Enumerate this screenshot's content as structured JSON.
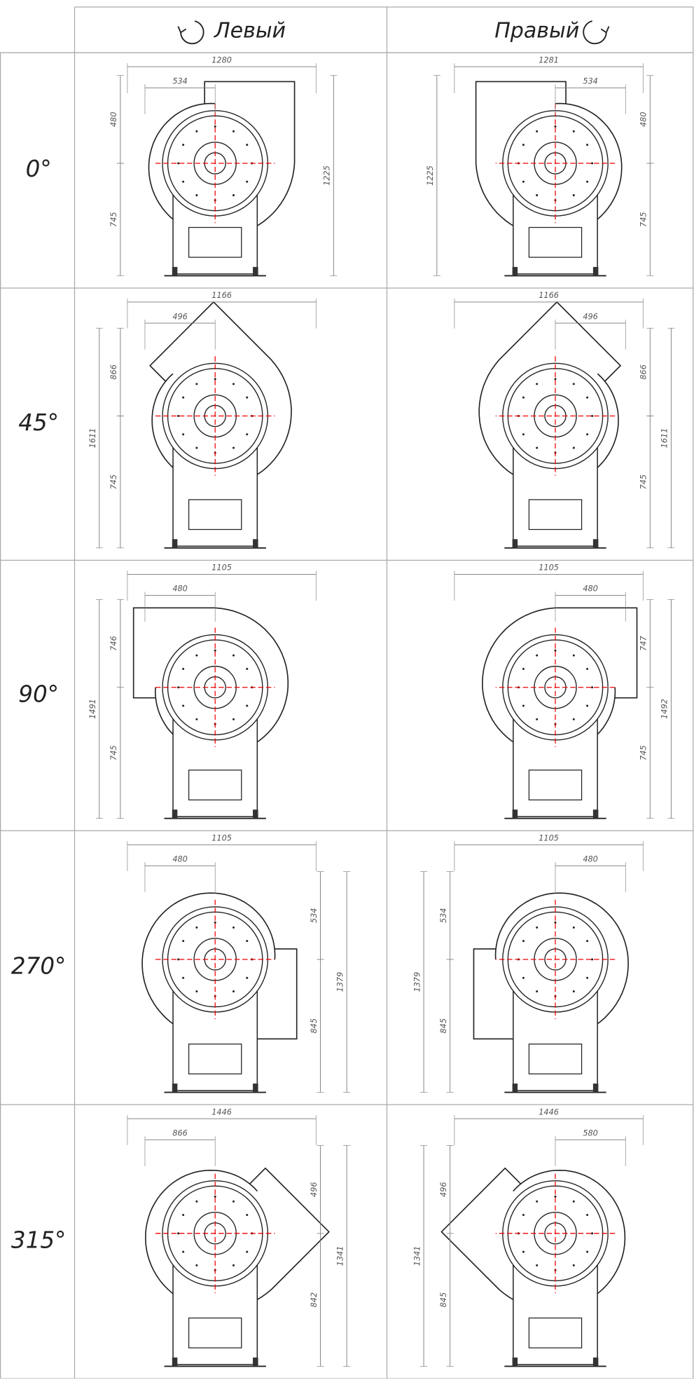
{
  "header": {
    "columns": [
      "Левый",
      "Правый"
    ]
  },
  "rows": [
    {
      "angle": "0°",
      "left": [
        "1280",
        "534",
        "480",
        "745",
        "1225"
      ],
      "right": [
        "1281",
        "534",
        "480",
        "745",
        "1225"
      ]
    },
    {
      "angle": "45°",
      "left": [
        "1166",
        "496",
        "866",
        "745",
        "1611"
      ],
      "right": [
        "1166",
        "496",
        "866",
        "745",
        "1611"
      ]
    },
    {
      "angle": "90°",
      "left": [
        "1105",
        "480",
        "746",
        "745",
        "1491"
      ],
      "right": [
        "1105",
        "480",
        "747",
        "745",
        "1492"
      ]
    },
    {
      "angle": "270°",
      "left": [
        "1105",
        "480",
        "534",
        "845",
        "1379"
      ],
      "right": [
        "1105",
        "480",
        "534",
        "845",
        "1379"
      ]
    },
    {
      "angle": "315°",
      "left": [
        "1446",
        "866",
        "496",
        "842",
        "1341"
      ],
      "right": [
        "1446",
        "580",
        "496",
        "845",
        "1341"
      ]
    }
  ]
}
